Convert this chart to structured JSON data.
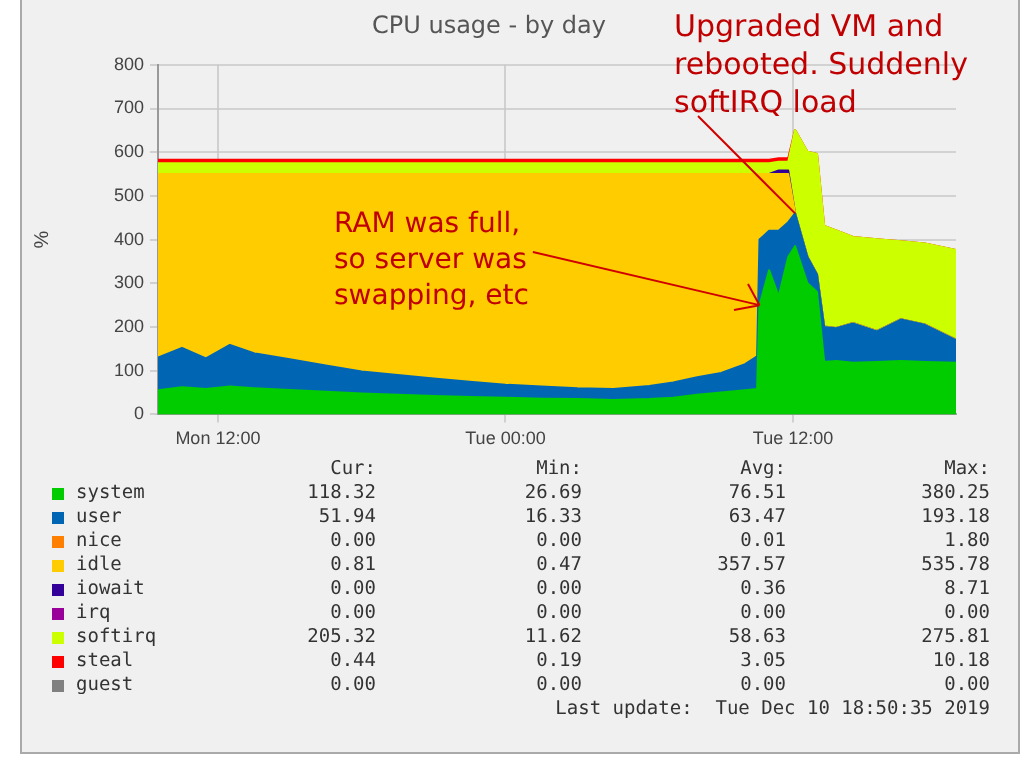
{
  "chart_data": {
    "type": "area",
    "stacked": true,
    "title": "CPU usage - by day",
    "ylabel": "%",
    "x": [
      "2019-12-09T09:30",
      "2019-12-09T10:30",
      "2019-12-09T11:30",
      "2019-12-09T12:30",
      "2019-12-09T13:30",
      "2019-12-09T15:00",
      "2019-12-09T16:30",
      "2019-12-09T18:00",
      "2019-12-09T19:30",
      "2019-12-09T21:00",
      "2019-12-09T22:30",
      "2019-12-10T00:00",
      "2019-12-10T01:30",
      "2019-12-10T03:00",
      "2019-12-10T04:30",
      "2019-12-10T06:00",
      "2019-12-10T07:00",
      "2019-12-10T08:00",
      "2019-12-10T09:00",
      "2019-12-10T10:00",
      "2019-12-10T10:30",
      "2019-12-10T10:36",
      "2019-12-10T11:00",
      "2019-12-10T11:24",
      "2019-12-10T11:48",
      "2019-12-10T12:05",
      "2019-12-10T12:36",
      "2019-12-10T13:00",
      "2019-12-10T13:18",
      "2019-12-10T13:48",
      "2019-12-10T14:30",
      "2019-12-10T15:30",
      "2019-12-10T16:30",
      "2019-12-10T17:30",
      "2019-12-10T18:48"
    ],
    "xlim": [
      "2019-12-09T09:30",
      "2019-12-10T18:48"
    ],
    "xticks": [
      {
        "value": "2019-12-09T12:00",
        "label": "Mon 12:00"
      },
      {
        "value": "2019-12-10T00:00",
        "label": "Tue 00:00"
      },
      {
        "value": "2019-12-10T12:00",
        "label": "Tue 12:00"
      }
    ],
    "ylim": [
      0,
      800
    ],
    "yticks": [
      0,
      100,
      200,
      300,
      400,
      500,
      600,
      700,
      800
    ],
    "grid": true,
    "legend": "bottom",
    "series": [
      {
        "name": "system",
        "color": "#00cc00",
        "values": [
          55,
          62,
          58,
          64,
          60,
          56,
          52,
          48,
          45,
          42,
          40,
          38,
          36,
          35,
          33,
          35,
          38,
          45,
          50,
          55,
          58,
          250,
          330,
          270,
          360,
          385,
          300,
          280,
          120,
          122,
          118,
          120,
          122,
          120,
          118
        ]
      },
      {
        "name": "user",
        "color": "#0066b3",
        "values": [
          75,
          90,
          70,
          95,
          80,
          70,
          60,
          50,
          45,
          40,
          35,
          30,
          28,
          25,
          25,
          30,
          35,
          40,
          45,
          60,
          75,
          150,
          90,
          150,
          80,
          75,
          60,
          40,
          80,
          75,
          90,
          70,
          95,
          85,
          52
        ]
      },
      {
        "name": "nice",
        "color": "#ff8000",
        "values": [
          null,
          null,
          null,
          null,
          null,
          null,
          null,
          null,
          null,
          null,
          null,
          null,
          null,
          null,
          null,
          null,
          null,
          null,
          null,
          null,
          null,
          null,
          null,
          null,
          null,
          null,
          null,
          null,
          null,
          null,
          null,
          null,
          null,
          null,
          null
        ]
      },
      {
        "name": "idle",
        "color": "#ffcc00",
        "values": [
          420,
          398,
          422,
          391,
          410,
          424,
          438,
          452,
          460,
          468,
          475,
          482,
          486,
          490,
          492,
          485,
          477,
          465,
          455,
          435,
          417,
          150,
          130,
          130,
          110,
          1,
          1,
          1,
          1,
          1,
          1,
          1,
          1,
          1,
          1
        ]
      },
      {
        "name": "iowait",
        "color": "#330099",
        "values": [
          0,
          0,
          0,
          0,
          0,
          0,
          0,
          0,
          0,
          0,
          0,
          0,
          0,
          0,
          0,
          0,
          0,
          0,
          0,
          0,
          0,
          0,
          0,
          8,
          8,
          0,
          0,
          0,
          0,
          0,
          0,
          0,
          0,
          0,
          0
        ]
      },
      {
        "name": "irq",
        "color": "#990099",
        "values": [
          null,
          null,
          null,
          null,
          null,
          null,
          null,
          null,
          null,
          null,
          null,
          null,
          null,
          null,
          null,
          null,
          null,
          null,
          null,
          null,
          null,
          null,
          null,
          null,
          null,
          null,
          null,
          null,
          null,
          null,
          null,
          null,
          null,
          null,
          null
        ]
      },
      {
        "name": "softirq",
        "color": "#ccff00",
        "values": [
          25,
          25,
          25,
          25,
          25,
          25,
          25,
          25,
          25,
          25,
          25,
          25,
          25,
          25,
          25,
          25,
          25,
          25,
          25,
          25,
          25,
          25,
          25,
          20,
          20,
          190,
          240,
          275,
          230,
          223,
          197,
          210,
          178,
          185,
          205
        ]
      },
      {
        "name": "steal",
        "color": "#ff0000",
        "values": [
          8,
          8,
          8,
          8,
          8,
          8,
          8,
          8,
          8,
          8,
          8,
          8,
          8,
          8,
          8,
          8,
          8,
          8,
          8,
          8,
          8,
          8,
          8,
          8,
          8,
          0,
          0,
          0,
          0,
          0,
          0,
          0,
          0,
          0,
          0
        ]
      },
      {
        "name": "guest",
        "color": "#808080",
        "values": [
          null,
          null,
          null,
          null,
          null,
          null,
          null,
          null,
          null,
          null,
          null,
          null,
          null,
          null,
          null,
          null,
          null,
          null,
          null,
          null,
          null,
          null,
          null,
          null,
          null,
          null,
          null,
          null,
          null,
          null,
          null,
          null,
          null,
          null,
          null
        ]
      }
    ],
    "annotations": [
      {
        "text": "Upgraded VM and\nrebooted. Suddenly\nsoftIRQ load",
        "x": "2019-12-10T12:05",
        "y": 460
      },
      {
        "text": "RAM was full,\nso server was\nswapping, etc",
        "x": "2019-12-10T10:36",
        "y": 250
      },
      "Cur:",
      "Min:",
      "Avg:",
      "Max:",
      "118.32",
      "26.69",
      "76.51",
      "380.25",
      "51.94",
      "16.33",
      "63.47",
      "193.18",
      "0.00",
      "0.00",
      "0.01",
      "1.80",
      "0.81",
      "0.47",
      "357.57",
      "535.78",
      "0.00",
      "0.00",
      "0.36",
      "8.71",
      "0.00",
      "0.00",
      "0.00",
      "0.00",
      "205.32",
      "11.62",
      "58.63",
      "275.81",
      "0.44",
      "0.19",
      "3.05",
      "10.18",
      "0.00",
      "0.00",
      "0.00",
      "0.00",
      "Last update:  Tue Dec 10 18:50:35 2019"
    ]
  }
}
